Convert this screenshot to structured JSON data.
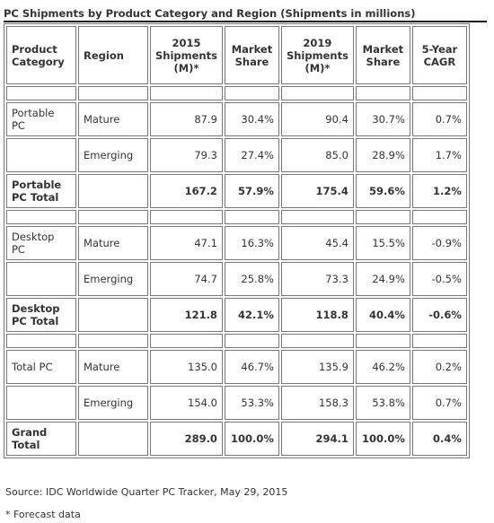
{
  "title": "PC Shipments by Product Category and Region (Shipments in millions)",
  "headers": {
    "category": "Product Category",
    "region": "Region",
    "s2015": "2015 Shipments (M)*",
    "share2015": "Market Share",
    "s2019": "2019 Shipments (M)*",
    "share2019": "Market Share",
    "cagr": "5-Year CAGR"
  },
  "rows": [
    {
      "category": "Portable PC",
      "region": "Mature",
      "s2015": "87.9",
      "share2015": "30.4%",
      "s2019": "90.4",
      "share2019": "30.7%",
      "cagr": "0.7%"
    },
    {
      "category": "",
      "region": "Emerging",
      "s2015": "79.3",
      "share2015": "27.4%",
      "s2019": "85.0",
      "share2019": "28.9%",
      "cagr": "1.7%"
    },
    {
      "category": "Portable PC Total",
      "region": "",
      "s2015": "167.2",
      "share2015": "57.9%",
      "s2019": "175.4",
      "share2019": "59.6%",
      "cagr": "1.2%"
    },
    {
      "category": "Desktop PC",
      "region": "Mature",
      "s2015": "47.1",
      "share2015": "16.3%",
      "s2019": "45.4",
      "share2019": "15.5%",
      "cagr": "-0.9%"
    },
    {
      "category": "",
      "region": "Emerging",
      "s2015": "74.7",
      "share2015": "25.8%",
      "s2019": "73.3",
      "share2019": "24.9%",
      "cagr": "-0.5%"
    },
    {
      "category": "Desktop PC Total",
      "region": "",
      "s2015": "121.8",
      "share2015": "42.1%",
      "s2019": "118.8",
      "share2019": "40.4%",
      "cagr": "-0.6%"
    },
    {
      "category": "Total PC",
      "region": "Mature",
      "s2015": "135.0",
      "share2015": "46.7%",
      "s2019": "135.9",
      "share2019": "46.2%",
      "cagr": "0.2%"
    },
    {
      "category": "",
      "region": "Emerging",
      "s2015": "154.0",
      "share2015": "53.3%",
      "s2019": "158.3",
      "share2019": "53.8%",
      "cagr": "0.7%"
    },
    {
      "category": "Grand Total",
      "region": "",
      "s2015": "289.0",
      "share2015": "100.0%",
      "s2019": "294.1",
      "share2019": "100.0%",
      "cagr": "0.4%"
    }
  ],
  "source": "Source:  IDC Worldwide Quarter PC Tracker, May 29, 2015",
  "footnote": "* Forecast data"
}
